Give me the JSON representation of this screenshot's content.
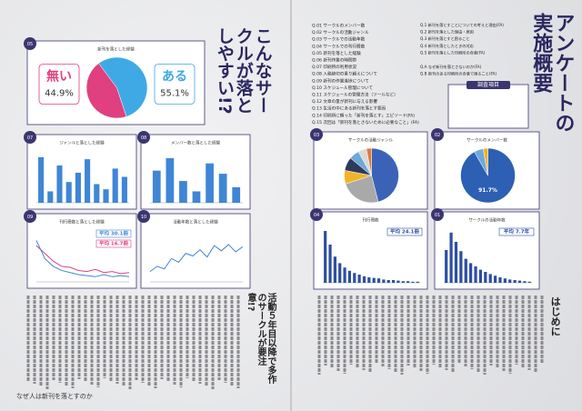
{
  "left_page": {
    "title": "こんなサークルが落としやすい!?",
    "headline": "活動５年目以降で多作のサークルが要注意!?",
    "footer": "なぜ人は新刊を落とすのか",
    "charts": [
      {
        "number": "05",
        "type": "pie",
        "title": "新刊を落とした経験",
        "categories": [
          "無い",
          "ある"
        ],
        "values": [
          44.9,
          55.1
        ],
        "value_labels": [
          "44.9%",
          "55.1%"
        ],
        "colors": [
          "#e0407f",
          "#3fa9e6"
        ]
      },
      {
        "number": "07",
        "type": "bar",
        "title": "ジャンルと落とした経験",
        "values": [
          88,
          22,
          72,
          40,
          58,
          84,
          36,
          26,
          66,
          50
        ],
        "ylim": [
          0,
          100
        ],
        "color": "#3f86d6"
      },
      {
        "number": "08",
        "type": "bar",
        "title": "メンバー数と落とした経験",
        "values": [
          62,
          86,
          42,
          22,
          76,
          56,
          30
        ],
        "ylim": [
          0,
          100
        ],
        "color": "#3f86d6"
      },
      {
        "number": "09",
        "type": "line",
        "title": "刊行冊数と落とした経験",
        "ylim": [
          0,
          100
        ],
        "series": [
          {
            "color": "#e0407f",
            "values": [
              70,
              55,
              40,
              30,
              28,
              22,
              20,
              24,
              18,
              20,
              16,
              18
            ]
          },
          {
            "color": "#3f86d6",
            "values": [
              80,
              45,
              30,
              22,
              18,
              14,
              12,
              10,
              14,
              10,
              12,
              10
            ]
          }
        ],
        "annotations": [
          {
            "text": "平均 30.1冊",
            "color": "#3f86d6"
          },
          {
            "text": "平均 16.7冊",
            "color": "#e0407f"
          }
        ]
      },
      {
        "number": "10",
        "type": "line",
        "title": "活動年数と落とした経験",
        "ylim": [
          0,
          100
        ],
        "series": [
          {
            "color": "#3f86d6",
            "values": [
              20,
              30,
              25,
              45,
              38,
              55,
              50,
              62,
              48,
              70,
              60,
              72,
              58,
              68
            ]
          }
        ]
      }
    ]
  },
  "right_page": {
    "title": "アンケートの実施概要",
    "questions": [
      "Q.01 サークルのメンバー数",
      "Q.02 サークルの活動ジャンル",
      "Q.03 サークルでの活動年数",
      "Q.04 サークルでの刊行冊数",
      "Q.05 新刊を落とした経験",
      "Q.06 新刊作業の時間帯",
      "Q.07 印刷所の利用状況",
      "Q.08 入稿締切の乗り越えについて",
      "Q.09 新刊の作業進捗について",
      "Q.10 スケジュール管理について",
      "Q.11 スケジュールの管理方法（ツールなど）",
      "Q.12 文章の量が新刊に与える影響",
      "Q.13 生活の中にある新刊を落とす要因",
      "Q.14 印刷所に頼った「新刊を落とす」エピソード(FA)",
      "Q.15 次回は「新刊を落とさないために必要なこと」(FA)"
    ],
    "questions_b": [
      "Q.1 新刊を落とすことについての考えと理由(FA)",
      "Q.2 新刊を落とした理由・原因",
      "Q.3 新刊を落とすと困ること",
      "Q.4 新刊を落としたときの対応",
      "Q.5 新刊を落とした印刷所の合意(FA)",
      "Q.A なぜ新刊を落とさないのか(FA)",
      "Q.B 新刊のある印刷所の合意で困ること(FA)"
    ],
    "survey_box_title": "調査項目",
    "intro_heading": "はじめに",
    "charts": [
      {
        "number": "03",
        "type": "pie",
        "title": "サークルの活動ジャンル",
        "values": [
          46,
          24,
          8,
          8,
          6,
          5,
          3
        ],
        "colors": [
          "#3a63b8",
          "#a9a9a9",
          "#f0b429",
          "#2e3a5c",
          "#6fa8dc",
          "#d9d9d9",
          "#e07b39"
        ]
      },
      {
        "number": "02",
        "type": "pie",
        "title": "サークルのメンバー数",
        "values": [
          91.7,
          5.5,
          2.8
        ],
        "value_labels": [
          "91.7%",
          null,
          null
        ],
        "colors": [
          "#2d5fb3",
          "#6fa8dc",
          "#f0b429"
        ]
      },
      {
        "number": "04",
        "type": "bar",
        "title": "刊行冊数",
        "values": [
          95,
          70,
          48,
          36,
          28,
          22,
          18,
          15,
          12,
          10,
          9,
          8,
          6,
          5,
          5,
          4,
          3,
          3,
          2,
          2
        ],
        "ylim": [
          0,
          100
        ],
        "color": "#2d4fa0",
        "annotations": [
          {
            "text": "平均 24.1冊",
            "color": "#2d4fa0"
          }
        ]
      },
      {
        "number": "01",
        "type": "bar",
        "title": "サークルの活動年数",
        "values": [
          60,
          92,
          75,
          58,
          44,
          36,
          30,
          24,
          20,
          16,
          13,
          10,
          8,
          6,
          5,
          4,
          3,
          2
        ],
        "ylim": [
          0,
          100
        ],
        "color": "#2d4fa0",
        "annotations": [
          {
            "text": "平均 7.7年",
            "color": "#2d4fa0"
          }
        ]
      }
    ]
  }
}
